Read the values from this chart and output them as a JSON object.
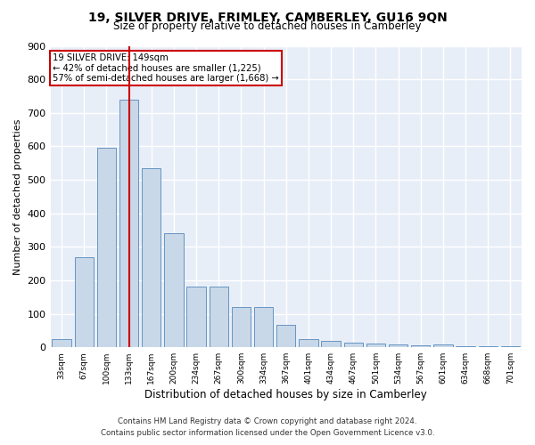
{
  "title": "19, SILVER DRIVE, FRIMLEY, CAMBERLEY, GU16 9QN",
  "subtitle": "Size of property relative to detached houses in Camberley",
  "xlabel": "Distribution of detached houses by size in Camberley",
  "ylabel": "Number of detached properties",
  "categories": [
    "33sqm",
    "67sqm",
    "100sqm",
    "133sqm",
    "167sqm",
    "200sqm",
    "234sqm",
    "267sqm",
    "300sqm",
    "334sqm",
    "367sqm",
    "401sqm",
    "434sqm",
    "467sqm",
    "501sqm",
    "534sqm",
    "567sqm",
    "601sqm",
    "634sqm",
    "668sqm",
    "701sqm"
  ],
  "values": [
    25,
    270,
    595,
    740,
    535,
    340,
    180,
    180,
    120,
    120,
    68,
    25,
    18,
    15,
    12,
    8,
    5,
    8,
    3,
    3,
    2
  ],
  "bar_color": "#c8d8e8",
  "bar_edge_color": "#5588bb",
  "red_line_index": 3,
  "property_label": "19 SILVER DRIVE: 149sqm",
  "annotation_line1": "← 42% of detached houses are smaller (1,225)",
  "annotation_line2": "57% of semi-detached houses are larger (1,668) →",
  "annotation_box_color": "#cc0000",
  "ylim": [
    0,
    900
  ],
  "yticks": [
    0,
    100,
    200,
    300,
    400,
    500,
    600,
    700,
    800,
    900
  ],
  "background_color": "#e8eef8",
  "grid_color": "#ffffff",
  "fig_background": "#ffffff",
  "footer_line1": "Contains HM Land Registry data © Crown copyright and database right 2024.",
  "footer_line2": "Contains public sector information licensed under the Open Government Licence v3.0."
}
